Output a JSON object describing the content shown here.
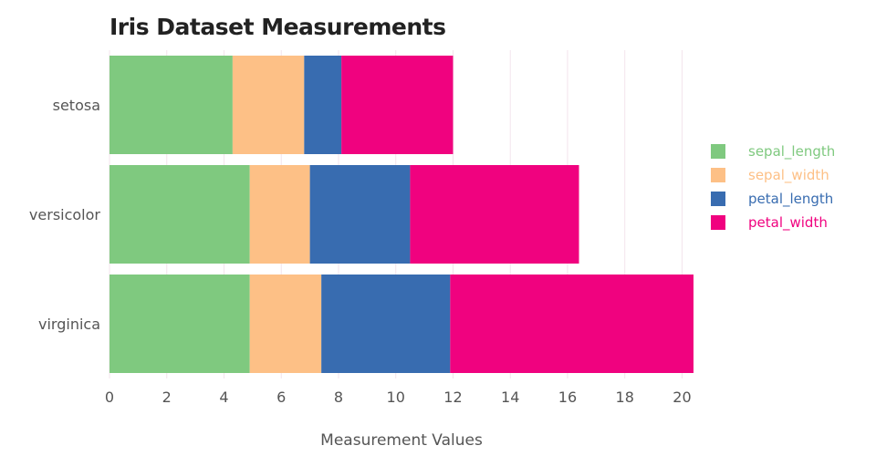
{
  "chart_data": {
    "type": "bar",
    "orientation": "horizontal",
    "stacked": true,
    "title": "Iris Dataset Measurements",
    "xlabel": "Measurement Values",
    "ylabel": "",
    "xlim": [
      0,
      20.4
    ],
    "x_ticks": [
      0,
      2,
      4,
      6,
      8,
      10,
      12,
      14,
      16,
      18,
      20
    ],
    "grid": true,
    "legend_position": "right",
    "categories": [
      "setosa",
      "versicolor",
      "virginica"
    ],
    "series": [
      {
        "name": "sepal_length",
        "color": "#7fc97f",
        "values": [
          4.3,
          4.9,
          4.9
        ]
      },
      {
        "name": "sepal_width",
        "color": "#fdc086",
        "values": [
          2.5,
          2.1,
          2.5
        ]
      },
      {
        "name": "petal_length",
        "color": "#386cb0",
        "values": [
          1.3,
          3.5,
          4.5
        ]
      },
      {
        "name": "petal_width",
        "color": "#f0027f",
        "values": [
          3.9,
          5.9,
          8.5
        ]
      }
    ]
  }
}
